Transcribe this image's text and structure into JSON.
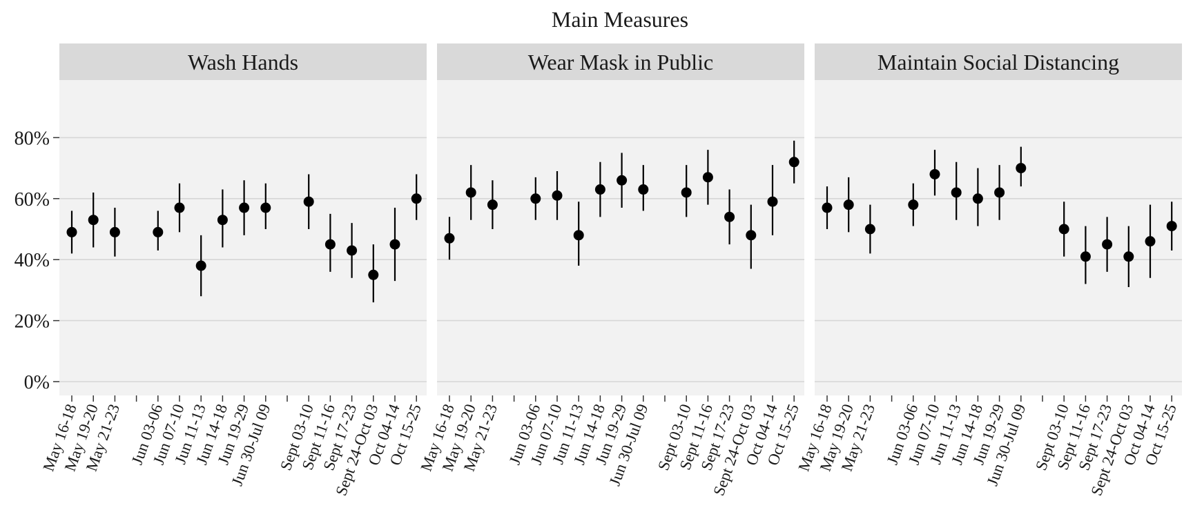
{
  "chart_data": {
    "type": "scatter",
    "title": "Main Measures",
    "xlabel": "",
    "ylabel": "",
    "ylim": [
      0,
      1
    ],
    "yticks": [
      0,
      0.2,
      0.4,
      0.6,
      0.8
    ],
    "ytick_labels": [
      "0%",
      "20%",
      "40%",
      "60%",
      "80%"
    ],
    "grid": true,
    "categories": [
      "May 16-18",
      "May 19-20",
      "May 21-23",
      "",
      "Jun 03-06",
      "Jun 07-10",
      "Jun 11-13",
      "Jun 14-18",
      "Jun 19-29",
      "Jun 30-Jul 09",
      "",
      "Sept 03-10",
      "Sept 11-16",
      "Sept 17-23",
      "Sept 24-Oct 03",
      "Oct 04-14",
      "Oct 15-25"
    ],
    "panels": [
      {
        "name": "Wash Hands",
        "points": [
          {
            "x": "May 16-18",
            "y": 0.49,
            "lo": 0.42,
            "hi": 0.56
          },
          {
            "x": "May 19-20",
            "y": 0.53,
            "lo": 0.44,
            "hi": 0.62
          },
          {
            "x": "May 21-23",
            "y": 0.49,
            "lo": 0.41,
            "hi": 0.57
          },
          {
            "x": "Jun 03-06",
            "y": 0.49,
            "lo": 0.43,
            "hi": 0.56
          },
          {
            "x": "Jun 07-10",
            "y": 0.57,
            "lo": 0.49,
            "hi": 0.65
          },
          {
            "x": "Jun 11-13",
            "y": 0.38,
            "lo": 0.28,
            "hi": 0.48
          },
          {
            "x": "Jun 14-18",
            "y": 0.53,
            "lo": 0.44,
            "hi": 0.63
          },
          {
            "x": "Jun 19-29",
            "y": 0.57,
            "lo": 0.48,
            "hi": 0.66
          },
          {
            "x": "Jun 30-Jul 09",
            "y": 0.57,
            "lo": 0.5,
            "hi": 0.65
          },
          {
            "x": "Sept 03-10",
            "y": 0.59,
            "lo": 0.5,
            "hi": 0.68
          },
          {
            "x": "Sept 11-16",
            "y": 0.45,
            "lo": 0.36,
            "hi": 0.55
          },
          {
            "x": "Sept 17-23",
            "y": 0.43,
            "lo": 0.34,
            "hi": 0.52
          },
          {
            "x": "Sept 24-Oct 03",
            "y": 0.35,
            "lo": 0.26,
            "hi": 0.45
          },
          {
            "x": "Oct 04-14",
            "y": 0.45,
            "lo": 0.33,
            "hi": 0.57
          },
          {
            "x": "Oct 15-25",
            "y": 0.6,
            "lo": 0.53,
            "hi": 0.68
          }
        ]
      },
      {
        "name": "Wear Mask in Public",
        "points": [
          {
            "x": "May 16-18",
            "y": 0.47,
            "lo": 0.4,
            "hi": 0.54
          },
          {
            "x": "May 19-20",
            "y": 0.62,
            "lo": 0.53,
            "hi": 0.71
          },
          {
            "x": "May 21-23",
            "y": 0.58,
            "lo": 0.5,
            "hi": 0.66
          },
          {
            "x": "Jun 03-06",
            "y": 0.6,
            "lo": 0.53,
            "hi": 0.67
          },
          {
            "x": "Jun 07-10",
            "y": 0.61,
            "lo": 0.53,
            "hi": 0.69
          },
          {
            "x": "Jun 11-13",
            "y": 0.48,
            "lo": 0.38,
            "hi": 0.59
          },
          {
            "x": "Jun 14-18",
            "y": 0.63,
            "lo": 0.54,
            "hi": 0.72
          },
          {
            "x": "Jun 19-29",
            "y": 0.66,
            "lo": 0.57,
            "hi": 0.75
          },
          {
            "x": "Jun 30-Jul 09",
            "y": 0.63,
            "lo": 0.56,
            "hi": 0.71
          },
          {
            "x": "Sept 03-10",
            "y": 0.62,
            "lo": 0.54,
            "hi": 0.71
          },
          {
            "x": "Sept 11-16",
            "y": 0.67,
            "lo": 0.58,
            "hi": 0.76
          },
          {
            "x": "Sept 17-23",
            "y": 0.54,
            "lo": 0.45,
            "hi": 0.63
          },
          {
            "x": "Sept 24-Oct 03",
            "y": 0.48,
            "lo": 0.37,
            "hi": 0.58
          },
          {
            "x": "Oct 04-14",
            "y": 0.59,
            "lo": 0.48,
            "hi": 0.71
          },
          {
            "x": "Oct 15-25",
            "y": 0.72,
            "lo": 0.65,
            "hi": 0.79
          }
        ]
      },
      {
        "name": "Maintain Social Distancing",
        "points": [
          {
            "x": "May 16-18",
            "y": 0.57,
            "lo": 0.5,
            "hi": 0.64
          },
          {
            "x": "May 19-20",
            "y": 0.58,
            "lo": 0.49,
            "hi": 0.67
          },
          {
            "x": "May 21-23",
            "y": 0.5,
            "lo": 0.42,
            "hi": 0.58
          },
          {
            "x": "Jun 03-06",
            "y": 0.58,
            "lo": 0.51,
            "hi": 0.65
          },
          {
            "x": "Jun 07-10",
            "y": 0.68,
            "lo": 0.61,
            "hi": 0.76
          },
          {
            "x": "Jun 11-13",
            "y": 0.62,
            "lo": 0.53,
            "hi": 0.72
          },
          {
            "x": "Jun 14-18",
            "y": 0.6,
            "lo": 0.51,
            "hi": 0.7
          },
          {
            "x": "Jun 19-29",
            "y": 0.62,
            "lo": 0.53,
            "hi": 0.71
          },
          {
            "x": "Jun 30-Jul 09",
            "y": 0.7,
            "lo": 0.64,
            "hi": 0.77
          },
          {
            "x": "Sept 03-10",
            "y": 0.5,
            "lo": 0.41,
            "hi": 0.59
          },
          {
            "x": "Sept 11-16",
            "y": 0.41,
            "lo": 0.32,
            "hi": 0.51
          },
          {
            "x": "Sept 17-23",
            "y": 0.45,
            "lo": 0.36,
            "hi": 0.54
          },
          {
            "x": "Sept 24-Oct 03",
            "y": 0.41,
            "lo": 0.31,
            "hi": 0.51
          },
          {
            "x": "Oct 04-14",
            "y": 0.46,
            "lo": 0.34,
            "hi": 0.58
          },
          {
            "x": "Oct 15-25",
            "y": 0.51,
            "lo": 0.43,
            "hi": 0.59
          }
        ]
      }
    ],
    "colors": {
      "panel_bg": "#f2f2f2",
      "strip_bg": "#d9d9d9",
      "grid": "#d6d6d6",
      "point": "#000000"
    }
  }
}
